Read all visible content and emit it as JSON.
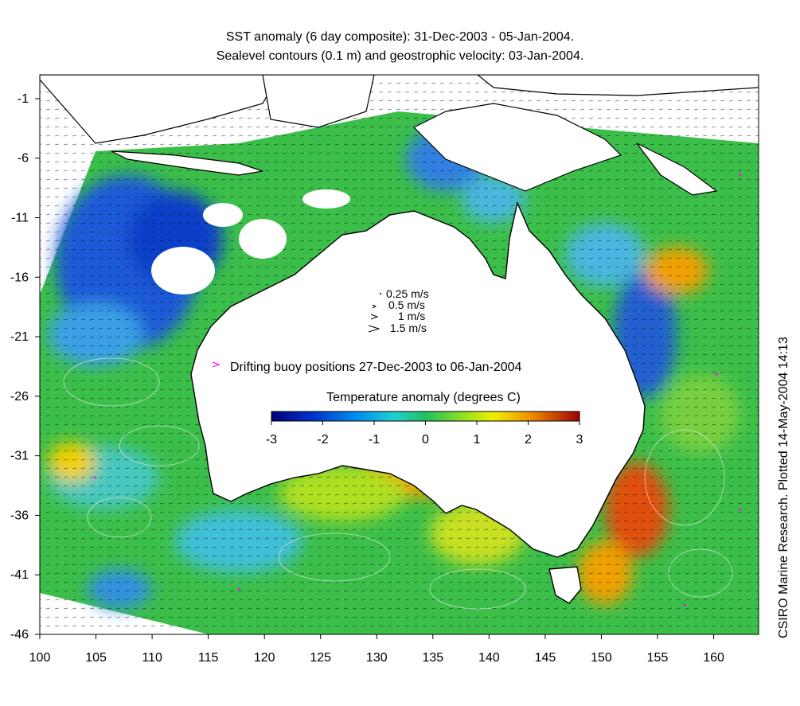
{
  "title": {
    "line1": "SST anomaly (6 day composite): 31-Dec-2003 - 05-Jan-2004.",
    "line2": "Sealevel contours (0.1 m) and geostrophic velocity: 03-Jan-2004."
  },
  "axes": {
    "x_ticks": [
      "100",
      "105",
      "110",
      "115",
      "120",
      "125",
      "130",
      "135",
      "140",
      "145",
      "150",
      "155",
      "160"
    ],
    "y_ticks": [
      "-1",
      "-6",
      "-11",
      "-16",
      "-21",
      "-26",
      "-31",
      "-36",
      "-41",
      "-46"
    ],
    "x_range": [
      100,
      164
    ],
    "y_range": [
      -46,
      1
    ]
  },
  "velocity_legend": [
    "0.25 m/s",
    "0.5 m/s",
    "1 m/s",
    "1.5 m/s"
  ],
  "buoy_legend": "Drifting buoy positions 27-Dec-2003 to 06-Jan-2004",
  "colorbar": {
    "title": "Temperature anomaly (degrees C)",
    "ticks": [
      "-3",
      "-2",
      "-1",
      "0",
      "1",
      "2",
      "3"
    ],
    "range": [
      -3,
      3
    ]
  },
  "credit": "CSIRO Marine Research. Plotted 14-May-2004 14:13",
  "colors": {
    "ocean_base": "#3cbf4a",
    "cold_anomaly": "#1040c8",
    "mid_cold": "#28b4e0",
    "warm_anomaly": "#f0a000",
    "hot_anomaly": "#e04010",
    "land": "#ffffff",
    "coastline": "#000000",
    "contour": "#e8e8e8",
    "buoy": "#ff00ff"
  }
}
